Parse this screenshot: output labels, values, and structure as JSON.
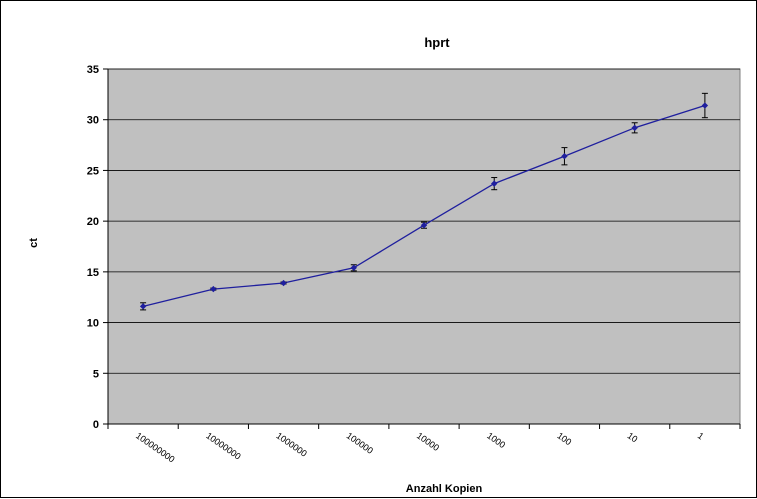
{
  "chart_data": {
    "type": "line",
    "title": "hprt",
    "xlabel": "Anzahl Kopien",
    "ylabel": "ct",
    "categories": [
      "100000000",
      "10000000",
      "1000000",
      "100000",
      "10000",
      "1000",
      "100",
      "10",
      "1"
    ],
    "series": [
      {
        "values": [
          11.6,
          13.3,
          13.9,
          15.4,
          19.6,
          23.7,
          26.4,
          29.2,
          31.4
        ],
        "errors": [
          0.35,
          0.1,
          0.1,
          0.3,
          0.3,
          0.6,
          0.85,
          0.5,
          1.2
        ],
        "color": "#1f1f9e"
      }
    ],
    "ylim": [
      0,
      35
    ],
    "yticks": [
      0,
      5,
      10,
      15,
      20,
      25,
      30,
      35
    ],
    "grid": true,
    "plot_background": "#c0c0c0",
    "legend": "none"
  }
}
